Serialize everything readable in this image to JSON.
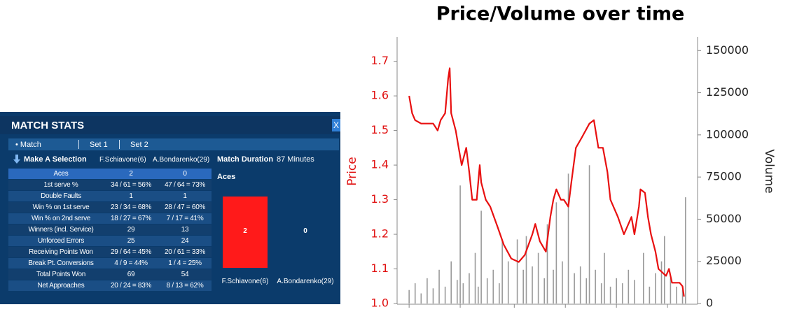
{
  "match_stats": {
    "title": "MATCH STATS",
    "close": "X",
    "tabs": [
      "• Match",
      "Set 1",
      "Set 2"
    ],
    "selector": "Make A Selection",
    "players": [
      "F.Schiavone(6)",
      "A.Bondarenko(29)"
    ],
    "duration_label": "Match Duration",
    "duration": "87 Minutes",
    "rows": [
      [
        "Aces",
        "2",
        "0"
      ],
      [
        "1st serve %",
        "34 / 61 = 56%",
        "47 / 64 = 73%"
      ],
      [
        "Double Faults",
        "1",
        "1"
      ],
      [
        "Win % on 1st serve",
        "23 / 34 = 68%",
        "28 / 47 = 60%"
      ],
      [
        "Win % on 2nd serve",
        "18 / 27 = 67%",
        "7 / 17 = 41%"
      ],
      [
        "Winners (incl. Service)",
        "29",
        "13"
      ],
      [
        "Unforced Errors",
        "25",
        "24"
      ],
      [
        "Receiving Points Won",
        "29 / 64 = 45%",
        "20 / 61 = 33%"
      ],
      [
        "Break Pt. Conversions",
        "4 / 9 = 44%",
        "1 / 4 = 25%"
      ],
      [
        "Total Points Won",
        "69",
        "54"
      ],
      [
        "Net Approaches",
        "20 / 24 = 83%",
        "8 / 13 = 62%"
      ]
    ],
    "aces_chart": {
      "type": "bar",
      "title": "Aces",
      "categories": [
        "F.Schiavone(6)",
        "A.Bondarenko(29)"
      ],
      "values": [
        2,
        0
      ],
      "color": "#ff1a1a"
    }
  },
  "chart_data": {
    "type": "line",
    "title": "Price/Volume over time",
    "ylabel": "Price",
    "y2label": "Volume",
    "xlim": [
      0,
      100
    ],
    "xticks": [
      4,
      21,
      39,
      56,
      73,
      90
    ],
    "ylim": [
      1.0,
      1.77
    ],
    "yticks": [
      {
        "value": 1,
        "label": "1.0"
      },
      1.1,
      1.2,
      1.3,
      1.4,
      1.5,
      1.6,
      1.7
    ],
    "y2lim": [
      0,
      158000
    ],
    "y2ticks": [
      0,
      25000,
      50000,
      75000,
      100000,
      125000,
      150000
    ],
    "series": [
      {
        "type": "line",
        "color": "#e81010",
        "x": [
          4,
          5,
          6,
          8,
          10,
          12,
          13.5,
          14.5,
          16,
          17,
          17.5,
          18,
          19.5,
          20.5,
          21.5,
          23,
          24,
          25,
          26.5,
          27.5,
          28,
          29.5,
          31,
          33.5,
          35.5,
          38,
          40.5,
          42.5,
          45,
          46,
          47.5,
          49.5,
          51,
          52,
          53,
          54.5,
          55.5,
          57,
          58,
          59.5,
          61.5,
          64,
          65.5,
          67,
          68.5,
          70,
          71,
          73.5,
          75.5,
          78,
          79,
          80.5,
          81,
          82.5,
          83.5,
          84.5,
          86,
          87,
          89.5,
          90.5,
          91.5,
          94,
          95,
          95.5
        ],
        "values": [
          1.6,
          1.55,
          1.53,
          1.52,
          1.52,
          1.52,
          1.5,
          1.53,
          1.55,
          1.65,
          1.68,
          1.55,
          1.5,
          1.45,
          1.4,
          1.45,
          1.38,
          1.3,
          1.3,
          1.4,
          1.35,
          1.3,
          1.28,
          1.22,
          1.17,
          1.13,
          1.12,
          1.14,
          1.2,
          1.23,
          1.18,
          1.15,
          1.25,
          1.3,
          1.33,
          1.3,
          1.3,
          1.28,
          1.35,
          1.45,
          1.48,
          1.52,
          1.53,
          1.45,
          1.45,
          1.38,
          1.3,
          1.25,
          1.2,
          1.25,
          1.2,
          1.28,
          1.33,
          1.32,
          1.25,
          1.2,
          1.15,
          1.1,
          1.08,
          1.1,
          1.06,
          1.06,
          1.05,
          1.02
        ]
      },
      {
        "type": "bar",
        "axis": "y2",
        "color": "#9a9a9a",
        "x": [
          4,
          6,
          8,
          10,
          12,
          14,
          16,
          18,
          20,
          21,
          22,
          24,
          26,
          27,
          28,
          30,
          32,
          34,
          35,
          37,
          40,
          42,
          43,
          45,
          47,
          49,
          50,
          52,
          53,
          55,
          57,
          59,
          61,
          63,
          64,
          66,
          68,
          69,
          71,
          73,
          75,
          77,
          79,
          82,
          84,
          86,
          88,
          89,
          91,
          93,
          95,
          96
        ],
        "values": [
          8000,
          12000,
          6000,
          15000,
          9000,
          20000,
          10000,
          25000,
          14000,
          70000,
          12000,
          18000,
          30000,
          10000,
          55000,
          15000,
          20000,
          12000,
          38000,
          25000,
          38000,
          20000,
          40000,
          22000,
          30000,
          15000,
          47000,
          20000,
          60000,
          25000,
          77000,
          18000,
          22000,
          15000,
          82000,
          20000,
          12000,
          30000,
          10000,
          15000,
          12000,
          20000,
          14000,
          30000,
          10000,
          18000,
          25000,
          40000,
          15000,
          10000,
          8000,
          63000
        ]
      }
    ]
  }
}
